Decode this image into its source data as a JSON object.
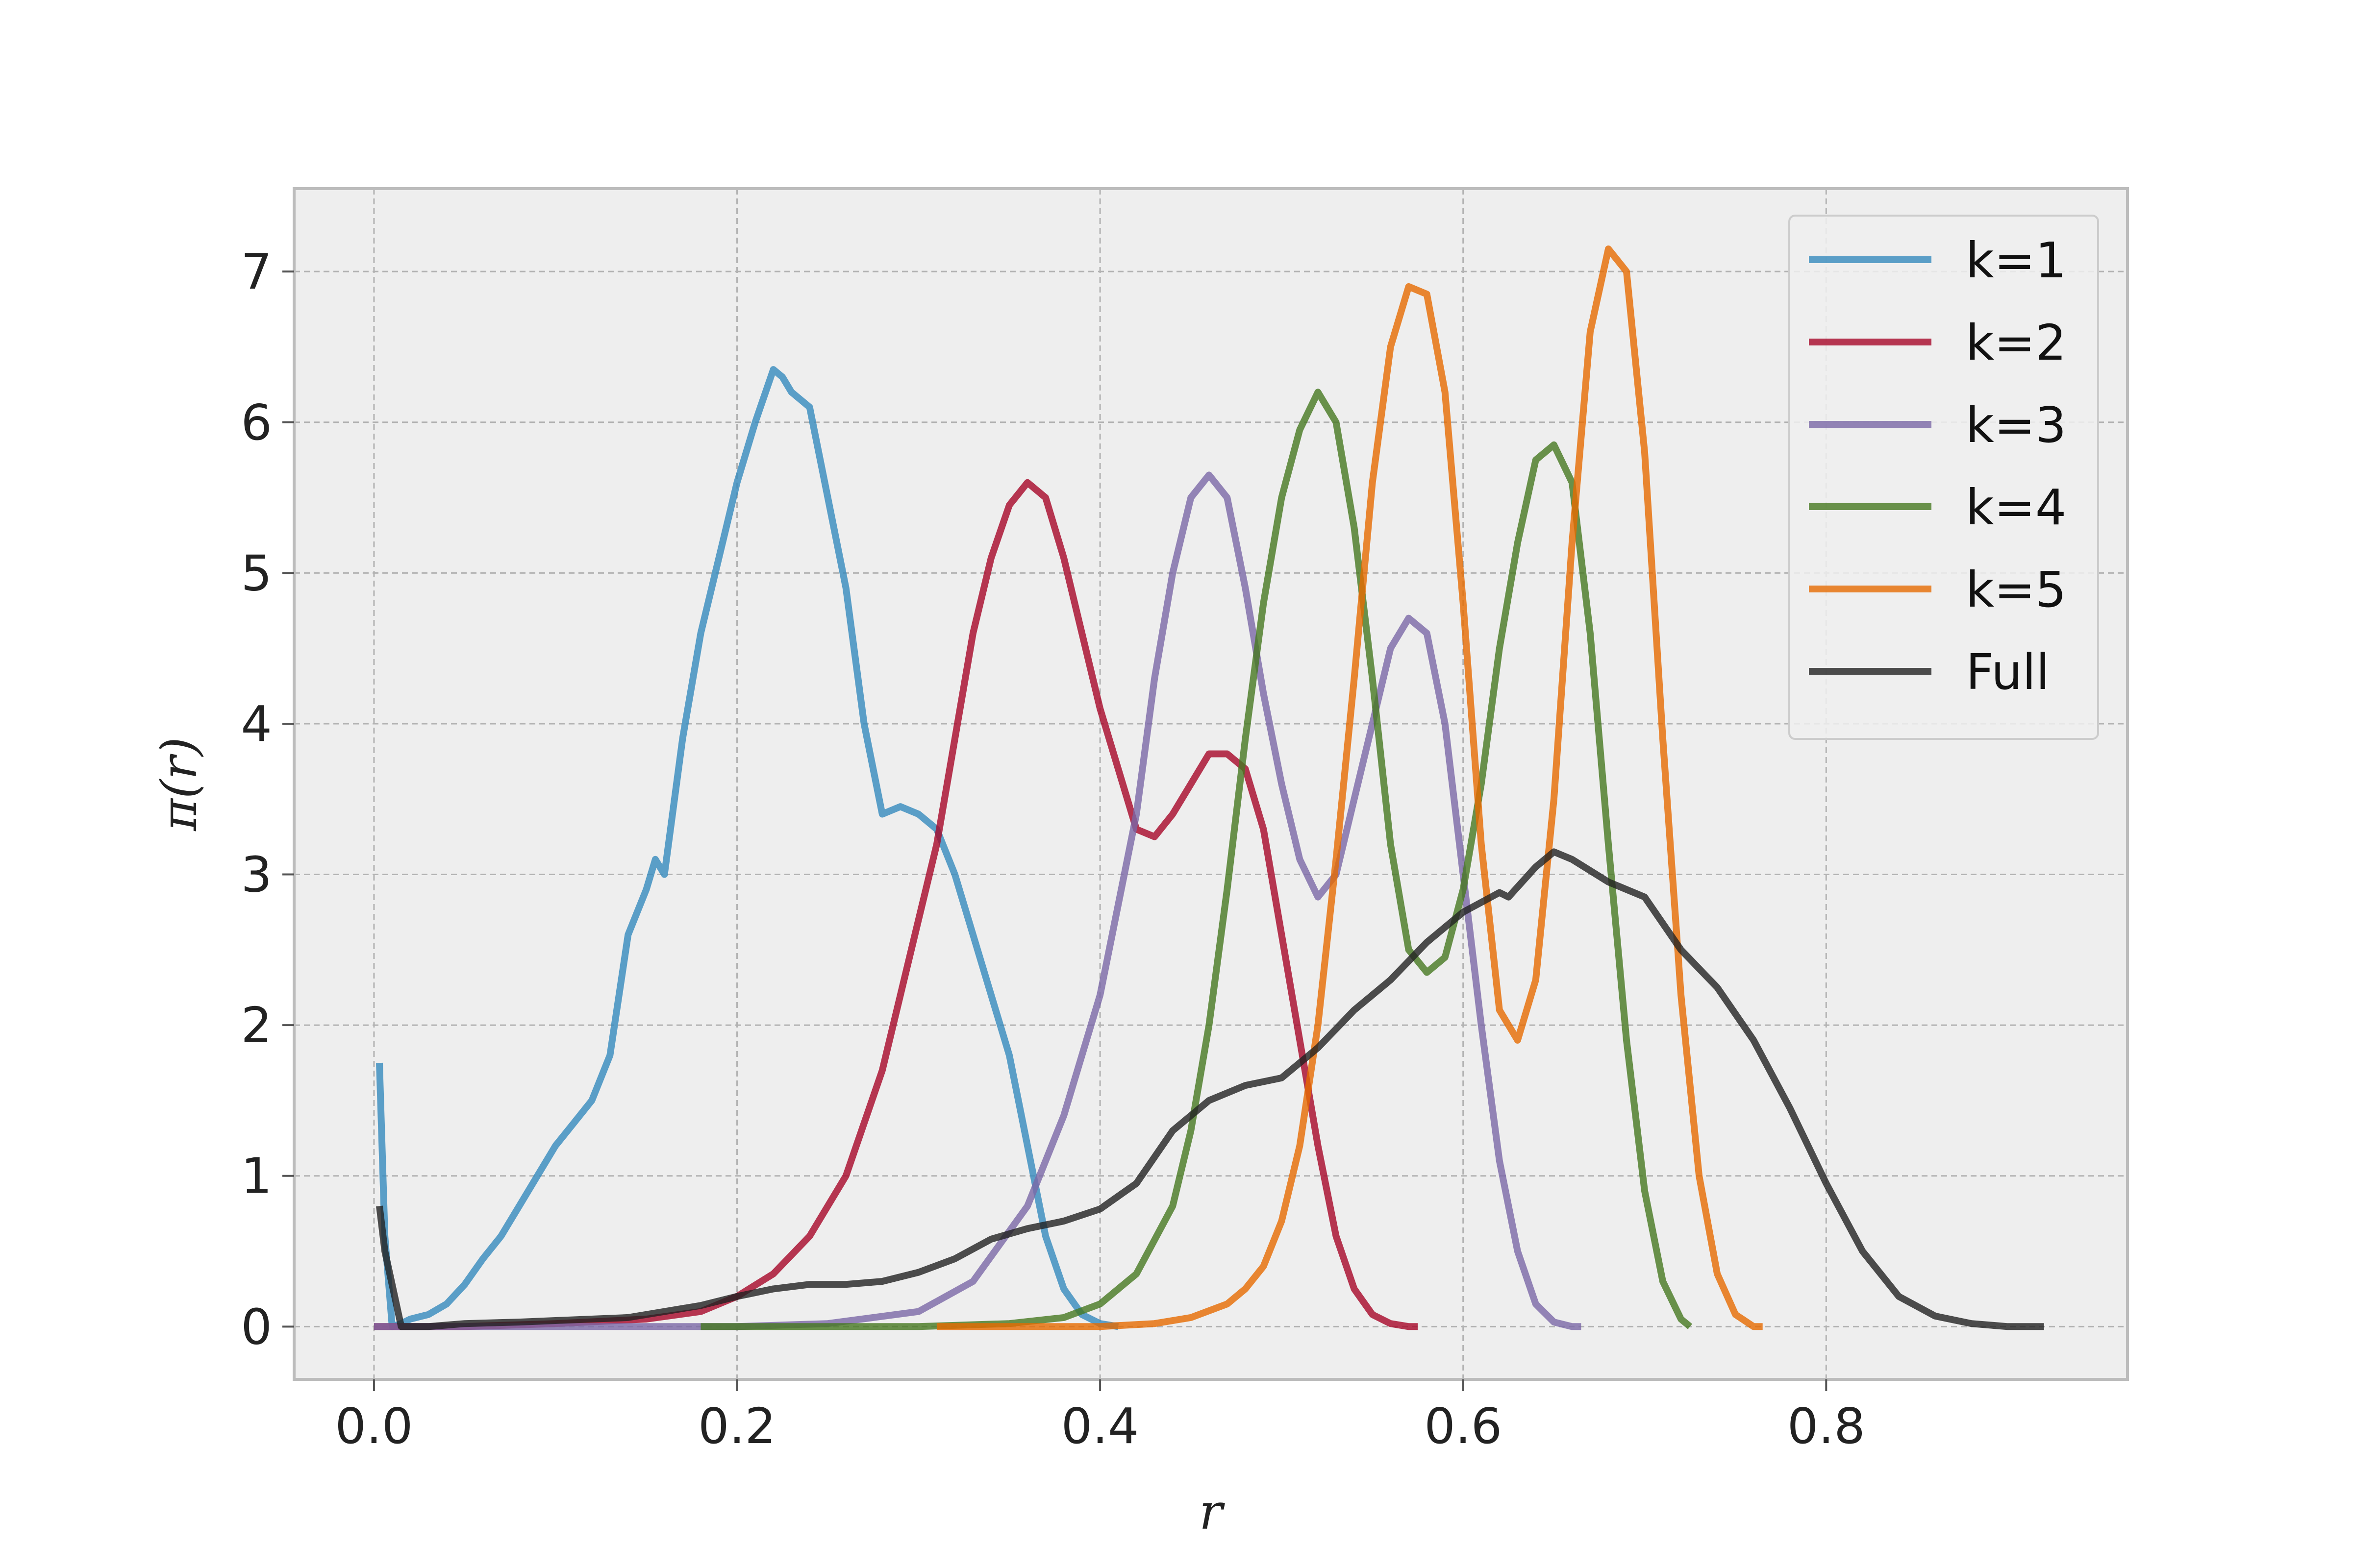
{
  "chart_data": {
    "type": "line",
    "title": "",
    "xlabel": "r",
    "ylabel": "π(r)",
    "xlim": [
      -0.044,
      0.966
    ],
    "ylim": [
      -0.35,
      7.55
    ],
    "x_ticks": [
      0.0,
      0.2,
      0.4,
      0.6,
      0.8
    ],
    "y_ticks": [
      0,
      1,
      2,
      3,
      4,
      5,
      6,
      7
    ],
    "x_tick_labels": [
      "0.0",
      "0.2",
      "0.4",
      "0.6",
      "0.8"
    ],
    "y_tick_labels": [
      "0",
      "1",
      "2",
      "3",
      "4",
      "5",
      "6",
      "7"
    ],
    "grid": true,
    "legend_position": "top-right",
    "series": [
      {
        "name": "k=1",
        "color": "#348ABD",
        "x": [
          0.003,
          0.006,
          0.01,
          0.015,
          0.02,
          0.03,
          0.04,
          0.05,
          0.06,
          0.07,
          0.08,
          0.09,
          0.1,
          0.11,
          0.12,
          0.13,
          0.14,
          0.15,
          0.155,
          0.16,
          0.17,
          0.18,
          0.19,
          0.2,
          0.21,
          0.22,
          0.225,
          0.23,
          0.24,
          0.25,
          0.26,
          0.27,
          0.28,
          0.29,
          0.3,
          0.31,
          0.32,
          0.33,
          0.34,
          0.35,
          0.36,
          0.37,
          0.38,
          0.39,
          0.4,
          0.41
        ],
        "y": [
          1.75,
          0.6,
          0.0,
          0.02,
          0.05,
          0.08,
          0.15,
          0.28,
          0.45,
          0.6,
          0.8,
          1.0,
          1.2,
          1.35,
          1.5,
          1.8,
          2.6,
          2.9,
          3.1,
          3.0,
          3.9,
          4.6,
          5.1,
          5.6,
          6.0,
          6.35,
          6.3,
          6.2,
          6.1,
          5.5,
          4.9,
          4.0,
          3.4,
          3.45,
          3.4,
          3.3,
          3.0,
          2.6,
          2.2,
          1.8,
          1.2,
          0.6,
          0.25,
          0.08,
          0.02,
          0.0
        ]
      },
      {
        "name": "k=2",
        "color": "#A60628",
        "x": [
          0.0,
          0.02,
          0.05,
          0.1,
          0.15,
          0.18,
          0.2,
          0.22,
          0.24,
          0.26,
          0.28,
          0.3,
          0.31,
          0.32,
          0.33,
          0.34,
          0.35,
          0.36,
          0.37,
          0.38,
          0.39,
          0.4,
          0.41,
          0.42,
          0.43,
          0.44,
          0.45,
          0.46,
          0.47,
          0.48,
          0.49,
          0.5,
          0.51,
          0.52,
          0.53,
          0.54,
          0.55,
          0.56,
          0.57,
          0.575
        ],
        "y": [
          0.0,
          0.0,
          0.0,
          0.02,
          0.05,
          0.1,
          0.2,
          0.35,
          0.6,
          1.0,
          1.7,
          2.7,
          3.2,
          3.9,
          4.6,
          5.1,
          5.45,
          5.6,
          5.5,
          5.1,
          4.6,
          4.1,
          3.7,
          3.3,
          3.25,
          3.4,
          3.6,
          3.8,
          3.8,
          3.7,
          3.3,
          2.6,
          1.9,
          1.2,
          0.6,
          0.25,
          0.08,
          0.02,
          0.0,
          0.0
        ]
      },
      {
        "name": "k=3",
        "color": "#7A68A6",
        "x": [
          0.0,
          0.05,
          0.1,
          0.15,
          0.2,
          0.25,
          0.3,
          0.33,
          0.36,
          0.38,
          0.4,
          0.42,
          0.43,
          0.44,
          0.45,
          0.46,
          0.47,
          0.48,
          0.49,
          0.5,
          0.51,
          0.52,
          0.53,
          0.54,
          0.55,
          0.56,
          0.57,
          0.58,
          0.59,
          0.6,
          0.61,
          0.62,
          0.63,
          0.64,
          0.65,
          0.66,
          0.665
        ],
        "y": [
          0.0,
          0.0,
          0.0,
          0.0,
          0.0,
          0.02,
          0.1,
          0.3,
          0.8,
          1.4,
          2.2,
          3.4,
          4.3,
          5.0,
          5.5,
          5.65,
          5.5,
          4.9,
          4.2,
          3.6,
          3.1,
          2.85,
          3.0,
          3.5,
          4.0,
          4.5,
          4.7,
          4.6,
          4.0,
          3.0,
          2.0,
          1.1,
          0.5,
          0.15,
          0.03,
          0.0,
          0.0
        ]
      },
      {
        "name": "k=4",
        "color": "#467821",
        "x": [
          0.18,
          0.25,
          0.3,
          0.35,
          0.38,
          0.4,
          0.42,
          0.44,
          0.45,
          0.46,
          0.47,
          0.48,
          0.49,
          0.5,
          0.51,
          0.52,
          0.53,
          0.54,
          0.55,
          0.56,
          0.57,
          0.58,
          0.59,
          0.6,
          0.61,
          0.62,
          0.63,
          0.64,
          0.65,
          0.66,
          0.67,
          0.68,
          0.69,
          0.7,
          0.71,
          0.72,
          0.725
        ],
        "y": [
          0.0,
          0.0,
          0.0,
          0.02,
          0.06,
          0.15,
          0.35,
          0.8,
          1.3,
          2.0,
          2.9,
          3.9,
          4.8,
          5.5,
          5.95,
          6.2,
          6.0,
          5.3,
          4.3,
          3.2,
          2.5,
          2.35,
          2.45,
          2.9,
          3.6,
          4.5,
          5.2,
          5.75,
          5.85,
          5.6,
          4.6,
          3.2,
          1.9,
          0.9,
          0.3,
          0.05,
          0.0
        ]
      },
      {
        "name": "k=5",
        "color": "#E66A00",
        "x": [
          0.31,
          0.36,
          0.4,
          0.43,
          0.45,
          0.47,
          0.48,
          0.49,
          0.5,
          0.51,
          0.52,
          0.53,
          0.54,
          0.55,
          0.56,
          0.57,
          0.58,
          0.59,
          0.6,
          0.61,
          0.62,
          0.63,
          0.64,
          0.65,
          0.66,
          0.67,
          0.68,
          0.69,
          0.7,
          0.71,
          0.72,
          0.73,
          0.74,
          0.75,
          0.76,
          0.765
        ],
        "y": [
          0.0,
          0.0,
          0.0,
          0.02,
          0.06,
          0.15,
          0.25,
          0.4,
          0.7,
          1.2,
          2.0,
          3.1,
          4.3,
          5.6,
          6.5,
          6.9,
          6.85,
          6.2,
          4.8,
          3.2,
          2.1,
          1.9,
          2.3,
          3.5,
          5.2,
          6.6,
          7.15,
          7.0,
          5.8,
          3.9,
          2.2,
          1.0,
          0.35,
          0.08,
          0.0,
          0.0
        ]
      },
      {
        "name": "Full",
        "color": "#222222",
        "x": [
          0.003,
          0.006,
          0.015,
          0.03,
          0.05,
          0.08,
          0.1,
          0.14,
          0.18,
          0.2,
          0.22,
          0.24,
          0.26,
          0.28,
          0.3,
          0.32,
          0.34,
          0.36,
          0.38,
          0.4,
          0.42,
          0.44,
          0.46,
          0.48,
          0.5,
          0.52,
          0.54,
          0.56,
          0.58,
          0.6,
          0.62,
          0.625,
          0.64,
          0.65,
          0.66,
          0.68,
          0.7,
          0.72,
          0.74,
          0.76,
          0.78,
          0.8,
          0.82,
          0.84,
          0.86,
          0.88,
          0.9,
          0.92
        ],
        "y": [
          0.8,
          0.5,
          0.0,
          0.0,
          0.02,
          0.03,
          0.04,
          0.06,
          0.14,
          0.2,
          0.25,
          0.28,
          0.28,
          0.3,
          0.36,
          0.45,
          0.58,
          0.65,
          0.7,
          0.78,
          0.95,
          1.3,
          1.5,
          1.6,
          1.65,
          1.85,
          2.1,
          2.3,
          2.55,
          2.75,
          2.88,
          2.85,
          3.05,
          3.15,
          3.1,
          2.95,
          2.85,
          2.5,
          2.25,
          1.9,
          1.45,
          0.95,
          0.5,
          0.2,
          0.07,
          0.02,
          0.0,
          0.0
        ]
      }
    ]
  }
}
